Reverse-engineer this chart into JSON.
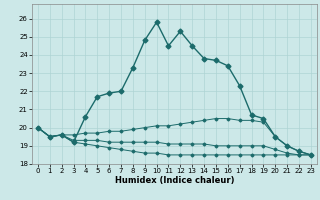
{
  "title": "",
  "xlabel": "Humidex (Indice chaleur)",
  "ylabel": "",
  "bg_color": "#cce8e8",
  "line_color": "#1c6b6b",
  "grid_color": "#afd4d4",
  "xlim": [
    -0.5,
    23.5
  ],
  "ylim": [
    18,
    26.8
  ],
  "yticks": [
    18,
    19,
    20,
    21,
    22,
    23,
    24,
    25,
    26
  ],
  "xticks": [
    0,
    1,
    2,
    3,
    4,
    5,
    6,
    7,
    8,
    9,
    10,
    11,
    12,
    13,
    14,
    15,
    16,
    17,
    18,
    19,
    20,
    21,
    22,
    23
  ],
  "series": [
    {
      "x": [
        0,
        1,
        2,
        3,
        4,
        5,
        6,
        7,
        8,
        9,
        10,
        11,
        12,
        13,
        14,
        15,
        16,
        17,
        18,
        19,
        20,
        21,
        22,
        23
      ],
      "y": [
        20.0,
        19.5,
        19.6,
        19.2,
        20.6,
        21.7,
        21.9,
        22.0,
        23.3,
        24.8,
        25.8,
        24.5,
        25.3,
        24.5,
        23.8,
        23.7,
        23.4,
        22.3,
        20.7,
        20.5,
        19.5,
        19.0,
        18.7,
        18.5
      ],
      "marker": "D",
      "markersize": 2.5,
      "linewidth": 1.0
    },
    {
      "x": [
        0,
        1,
        2,
        3,
        4,
        5,
        6,
        7,
        8,
        9,
        10,
        11,
        12,
        13,
        14,
        15,
        16,
        17,
        18,
        19,
        20,
        21,
        22,
        23
      ],
      "y": [
        20.0,
        19.5,
        19.6,
        19.6,
        19.7,
        19.7,
        19.8,
        19.8,
        19.9,
        20.0,
        20.1,
        20.1,
        20.2,
        20.3,
        20.4,
        20.5,
        20.5,
        20.4,
        20.4,
        20.3,
        19.5,
        19.0,
        18.7,
        18.5
      ],
      "marker": "D",
      "markersize": 1.5,
      "linewidth": 0.7
    },
    {
      "x": [
        0,
        1,
        2,
        3,
        4,
        5,
        6,
        7,
        8,
        9,
        10,
        11,
        12,
        13,
        14,
        15,
        16,
        17,
        18,
        19,
        20,
        21,
        22,
        23
      ],
      "y": [
        20.0,
        19.5,
        19.6,
        19.3,
        19.3,
        19.3,
        19.2,
        19.2,
        19.2,
        19.2,
        19.2,
        19.1,
        19.1,
        19.1,
        19.1,
        19.0,
        19.0,
        19.0,
        19.0,
        19.0,
        18.8,
        18.6,
        18.5,
        18.5
      ],
      "marker": "D",
      "markersize": 1.5,
      "linewidth": 0.7
    },
    {
      "x": [
        0,
        1,
        2,
        3,
        4,
        5,
        6,
        7,
        8,
        9,
        10,
        11,
        12,
        13,
        14,
        15,
        16,
        17,
        18,
        19,
        20,
        21,
        22,
        23
      ],
      "y": [
        20.0,
        19.5,
        19.6,
        19.2,
        19.1,
        19.0,
        18.9,
        18.8,
        18.7,
        18.6,
        18.6,
        18.5,
        18.5,
        18.5,
        18.5,
        18.5,
        18.5,
        18.5,
        18.5,
        18.5,
        18.5,
        18.5,
        18.5,
        18.5
      ],
      "marker": "D",
      "markersize": 1.5,
      "linewidth": 0.7
    }
  ]
}
